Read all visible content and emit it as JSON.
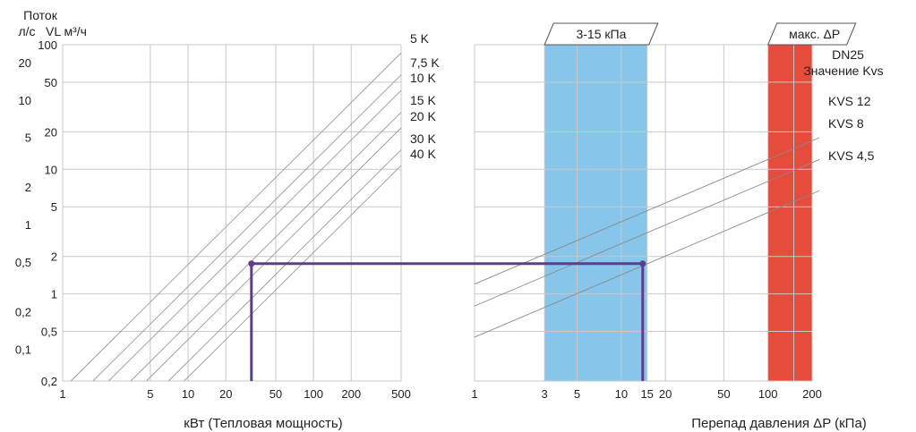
{
  "chart_data": {
    "type": "line",
    "y_axis": {
      "title": "Поток",
      "unit_ls": "л/с",
      "unit_vl": "VL м³/ч",
      "ticks_ls": [
        "20",
        "10",
        "5",
        "2",
        "1",
        "0,5",
        "0,2",
        "0,1"
      ],
      "ticks_vl": [
        "100",
        "50",
        "20",
        "10",
        "5",
        "2",
        "1",
        "0,5",
        "0,2"
      ],
      "range_m3h": [
        0.2,
        100
      ],
      "scale": "log"
    },
    "left_panel": {
      "xlabel": "кВт (Тепловая мощность)",
      "xticks": [
        "1",
        "5",
        "10",
        "20",
        "50",
        "100",
        "200",
        "500"
      ],
      "xrange": [
        1,
        500
      ],
      "scale": "log",
      "series": [
        {
          "name": "5 K"
        },
        {
          "name": "7,5 K"
        },
        {
          "name": "10 K"
        },
        {
          "name": "15 K"
        },
        {
          "name": "20 K"
        },
        {
          "name": "30 K"
        },
        {
          "name": "40 K"
        }
      ]
    },
    "right_panel": {
      "xlabel": "Перепад давления ΔP (кПа)",
      "xticks": [
        "1",
        "3",
        "5",
        "10",
        "15",
        "20",
        "50",
        "100",
        "200"
      ],
      "xrange": [
        1,
        200
      ],
      "scale": "log",
      "band_label": "3-15 кПа",
      "band_range": [
        3,
        15
      ],
      "band_color": "#87c6ea",
      "max_label": "макс. ΔP",
      "max_range": [
        100,
        200
      ],
      "max_color": "#e64b3c",
      "title_line1": "DN25",
      "title_line2": "Значение Kvs",
      "kvs": [
        {
          "name": "KVS 12",
          "kvs": 12
        },
        {
          "name": "KVS 8",
          "kvs": 8
        },
        {
          "name": "KVS 4,5",
          "kvs": 4.5
        }
      ]
    },
    "example": {
      "power_kw": 32,
      "flow_m3h": 1.75,
      "dp_kpa": 14,
      "color": "#5e3d91"
    }
  }
}
